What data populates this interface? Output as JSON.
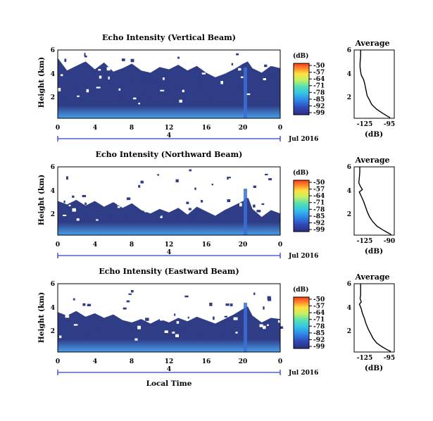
{
  "chart_data": [
    {
      "type": "heatmap",
      "title": "Echo Intensity (Vertical Beam)",
      "ylabel": "Height (km)",
      "y_ticks": [
        "6",
        "4",
        "2"
      ],
      "x_ticks": [
        "0",
        "4",
        "8",
        "12",
        "16",
        "20",
        "0"
      ],
      "date_day": "4",
      "date_label": "Jul 2016",
      "xlim": [
        0,
        24
      ],
      "ylim": [
        0,
        6
      ],
      "colorbar": {
        "unit": "(dB)",
        "ticks": [
          "-50",
          "-57",
          "-64",
          "-71",
          "-78",
          "-85",
          "-92",
          "-99"
        ]
      },
      "white_above_km": [
        [
          0,
          5.3
        ],
        [
          1,
          4.2
        ],
        [
          2,
          4.6
        ],
        [
          3,
          5.0
        ],
        [
          4,
          4.3
        ],
        [
          5,
          4.9
        ],
        [
          6,
          4.1
        ],
        [
          7,
          4.4
        ],
        [
          8,
          4.8
        ],
        [
          9,
          4.2
        ],
        [
          10,
          4.0
        ],
        [
          11,
          4.5
        ],
        [
          12,
          4.3
        ],
        [
          13,
          4.7
        ],
        [
          14,
          4.2
        ],
        [
          15,
          4.6
        ],
        [
          16,
          4.0
        ],
        [
          17,
          3.6
        ],
        [
          18,
          3.9
        ],
        [
          19,
          4.3
        ],
        [
          20,
          4.8
        ],
        [
          20.5,
          5.0
        ],
        [
          21,
          4.4
        ],
        [
          22,
          4.0
        ],
        [
          23,
          4.6
        ],
        [
          24,
          4.4
        ]
      ],
      "average": {
        "title": "Average",
        "y_ticks": [
          "6",
          "4",
          "2"
        ],
        "x_ticks": [
          "-125",
          "-95"
        ],
        "xlabel": "(dB)",
        "xlim": [
          -127,
          -93
        ],
        "ylim": [
          0,
          6
        ],
        "profile": [
          [
            -96.5,
            0.05
          ],
          [
            -99,
            0.2
          ],
          [
            -103,
            0.45
          ],
          [
            -108,
            0.8
          ],
          [
            -112,
            1.2
          ],
          [
            -114,
            1.6
          ],
          [
            -116,
            2.0
          ],
          [
            -117,
            2.5
          ],
          [
            -118,
            3.0
          ],
          [
            -119,
            3.4
          ],
          [
            -121,
            3.8
          ],
          [
            -121.5,
            4.1
          ],
          [
            -122,
            4.5
          ],
          [
            -122,
            4.8
          ],
          [
            -121.8,
            5.1
          ],
          [
            -121.5,
            5.5
          ],
          [
            -121.5,
            6.0
          ]
        ]
      }
    },
    {
      "type": "heatmap",
      "title": "Echo Intensity (Northward Beam)",
      "ylabel": "Height (km)",
      "y_ticks": [
        "6",
        "4",
        "2"
      ],
      "x_ticks": [
        "0",
        "4",
        "8",
        "12",
        "16",
        "20",
        "0"
      ],
      "date_day": "4",
      "date_label": "Jul 2016",
      "xlim": [
        0,
        24
      ],
      "ylim": [
        0,
        6
      ],
      "colorbar": {
        "unit": "(dB)",
        "ticks": [
          "-50",
          "-57",
          "-64",
          "-71",
          "-78",
          "-85",
          "-92",
          "-99"
        ]
      },
      "white_above_km": [
        [
          0,
          3.0
        ],
        [
          1,
          2.7
        ],
        [
          2,
          3.1
        ],
        [
          3,
          2.6
        ],
        [
          4,
          3.0
        ],
        [
          5,
          2.5
        ],
        [
          6,
          2.9
        ],
        [
          7,
          2.4
        ],
        [
          8,
          2.8
        ],
        [
          9,
          2.2
        ],
        [
          10,
          1.9
        ],
        [
          11,
          2.3
        ],
        [
          12,
          2.0
        ],
        [
          13,
          2.4
        ],
        [
          14,
          1.8
        ],
        [
          15,
          2.5
        ],
        [
          16,
          2.1
        ],
        [
          17,
          1.7
        ],
        [
          18,
          2.2
        ],
        [
          19,
          2.6
        ],
        [
          20,
          3.0
        ],
        [
          20.5,
          3.4
        ],
        [
          21,
          2.3
        ],
        [
          22,
          1.6
        ],
        [
          23,
          2.2
        ],
        [
          24,
          1.9
        ]
      ],
      "average": {
        "title": "Average",
        "y_ticks": [
          "6",
          "4",
          "2"
        ],
        "x_ticks": [
          "-125",
          "-90"
        ],
        "xlabel": "(dB)",
        "xlim": [
          -127,
          -88
        ],
        "ylim": [
          0,
          6
        ],
        "profile": [
          [
            -91,
            0.05
          ],
          [
            -94,
            0.2
          ],
          [
            -99,
            0.45
          ],
          [
            -105,
            0.8
          ],
          [
            -109,
            1.2
          ],
          [
            -112,
            1.6
          ],
          [
            -114,
            2.0
          ],
          [
            -116,
            2.5
          ],
          [
            -118,
            3.0
          ],
          [
            -120,
            3.4
          ],
          [
            -122,
            3.8
          ],
          [
            -119,
            4.0
          ],
          [
            -121,
            4.3
          ],
          [
            -122.5,
            4.6
          ],
          [
            -122,
            5.0
          ],
          [
            -121.5,
            5.5
          ],
          [
            -121.5,
            6.0
          ]
        ]
      }
    },
    {
      "type": "heatmap",
      "title": "Echo Intensity (Eastward Beam)",
      "ylabel": "Height (km)",
      "y_ticks": [
        "6",
        "4",
        "2"
      ],
      "x_ticks": [
        "0",
        "4",
        "8",
        "12",
        "16",
        "20",
        "0"
      ],
      "date_day": "4",
      "date_label": "Jul 2016",
      "xlabel": "Local Time",
      "xlim": [
        0,
        24
      ],
      "ylim": [
        0,
        6
      ],
      "colorbar": {
        "unit": "(dB)",
        "ticks": [
          "-50",
          "-57",
          "-64",
          "-71",
          "-78",
          "-85",
          "-92",
          "-99"
        ]
      },
      "white_above_km": [
        [
          0,
          3.5
        ],
        [
          1,
          3.2
        ],
        [
          2,
          3.6
        ],
        [
          3,
          3.1
        ],
        [
          4,
          3.4
        ],
        [
          5,
          3.0
        ],
        [
          6,
          3.3
        ],
        [
          7,
          2.8
        ],
        [
          8,
          2.6
        ],
        [
          9,
          2.9
        ],
        [
          10,
          2.5
        ],
        [
          11,
          2.9
        ],
        [
          12,
          2.6
        ],
        [
          13,
          3.0
        ],
        [
          14,
          2.7
        ],
        [
          15,
          3.1
        ],
        [
          16,
          2.8
        ],
        [
          17,
          2.5
        ],
        [
          18,
          2.9
        ],
        [
          19,
          3.3
        ],
        [
          20,
          3.8
        ],
        [
          20.5,
          4.0
        ],
        [
          21,
          3.2
        ],
        [
          22,
          2.6
        ],
        [
          23,
          3.0
        ],
        [
          24,
          2.9
        ]
      ],
      "average": {
        "title": "Average",
        "y_ticks": [
          "6",
          "4",
          "2"
        ],
        "x_ticks": [
          "-125",
          "-95"
        ],
        "xlabel": "(dB)",
        "xlim": [
          -127,
          -93
        ],
        "ylim": [
          0,
          6
        ],
        "profile": [
          [
            -96,
            0.05
          ],
          [
            -99,
            0.2
          ],
          [
            -104,
            0.5
          ],
          [
            -108,
            0.8
          ],
          [
            -111,
            1.2
          ],
          [
            -113,
            1.6
          ],
          [
            -115,
            2.0
          ],
          [
            -117,
            2.5
          ],
          [
            -118.5,
            3.0
          ],
          [
            -120,
            3.4
          ],
          [
            -121,
            3.8
          ],
          [
            -122.5,
            4.2
          ],
          [
            -121,
            4.4
          ],
          [
            -122,
            4.7
          ],
          [
            -121.5,
            5.0
          ],
          [
            -121.5,
            5.5
          ],
          [
            -121.5,
            6.0
          ]
        ]
      }
    }
  ],
  "colors": {
    "field": "#2f3c86",
    "near_ground": "#3f57c8",
    "bright": "#4aa3f0",
    "colorbar": [
      "#2a2f80",
      "#3048b8",
      "#2f86e6",
      "#35c3e8",
      "#55e0b0",
      "#c8f060",
      "#ffe040",
      "#ff8a2a",
      "#ff3a1a"
    ]
  }
}
